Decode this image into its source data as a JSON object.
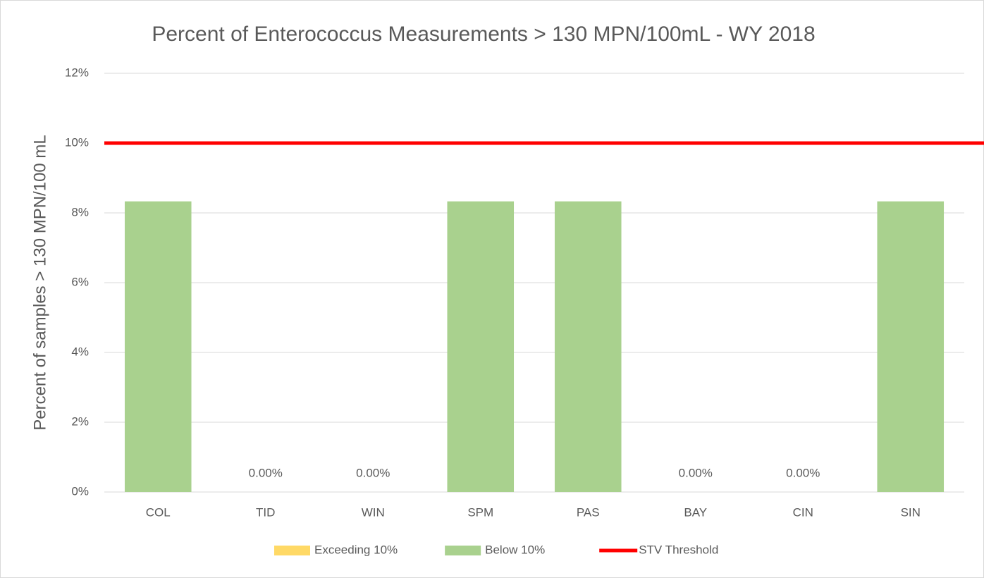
{
  "chart_data": {
    "type": "bar",
    "title": "Percent of Enterococcus Measurements > 130 MPN/100mL - WY 2018",
    "y_label": "Percent of samples > 130 MPN/100 mL",
    "categories": [
      "COL",
      "TID",
      "WIN",
      "SPM",
      "PAS",
      "BAY",
      "CIN",
      "SIN"
    ],
    "series": [
      {
        "name": "Exceeding 10%",
        "color": "#ffd966",
        "values": [
          null,
          null,
          null,
          null,
          null,
          null,
          null,
          null
        ]
      },
      {
        "name": "Below 10%",
        "color": "#a9d18e",
        "values": [
          8.33,
          0,
          0,
          8.33,
          8.33,
          0,
          0,
          8.33
        ],
        "value_labels": [
          null,
          "0.00%",
          "0.00%",
          null,
          null,
          "0.00%",
          "0.00%",
          null
        ]
      }
    ],
    "threshold": {
      "name": "STV Threshold",
      "color": "#ff0000",
      "value": 10
    },
    "ylim": [
      0,
      12
    ],
    "yticks": [
      {
        "value": 0,
        "label": "0%"
      },
      {
        "value": 2,
        "label": "2%"
      },
      {
        "value": 4,
        "label": "4%"
      },
      {
        "value": 6,
        "label": "6%"
      },
      {
        "value": 8,
        "label": "8%"
      },
      {
        "value": 10,
        "label": "10%"
      },
      {
        "value": 12,
        "label": "12%"
      }
    ],
    "grid": true,
    "legend": "bottom"
  }
}
